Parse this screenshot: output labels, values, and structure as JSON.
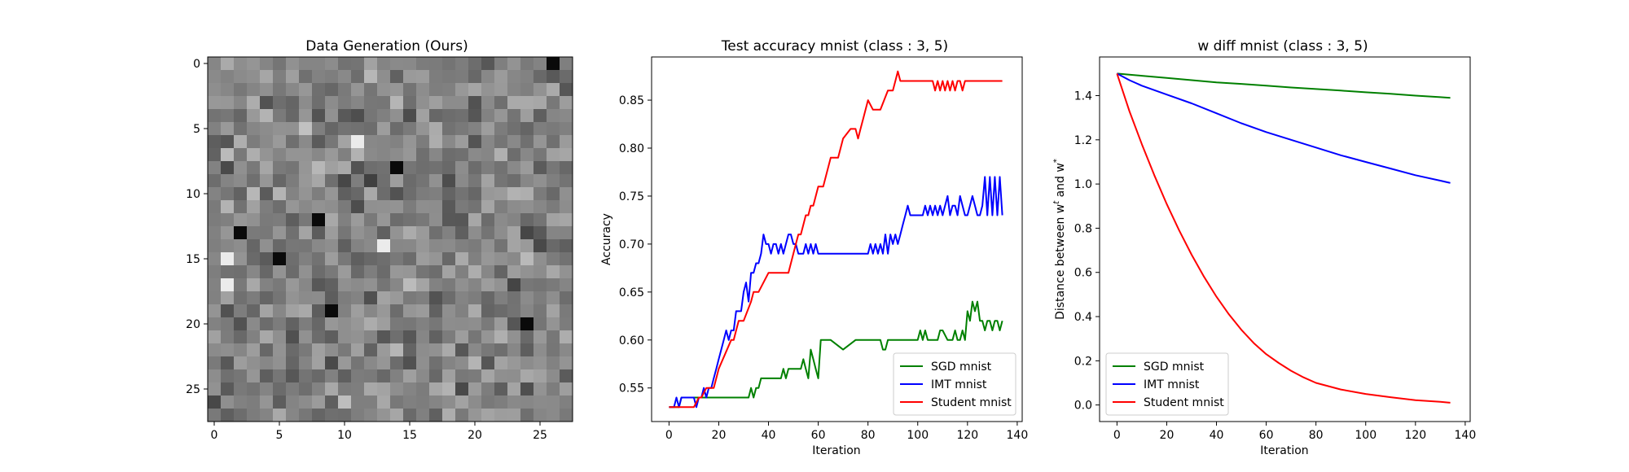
{
  "chart_data": [
    {
      "type": "heatmap",
      "title": "Data Generation (Ours)",
      "xlabel": "",
      "ylabel": "",
      "rows": 28,
      "cols": 28,
      "colormap": "gray",
      "xticks": [
        0,
        5,
        10,
        15,
        20,
        25
      ],
      "yticks": [
        0,
        5,
        10,
        15,
        20,
        25
      ],
      "notable_cells": {
        "white": [
          [
            17,
            1
          ],
          [
            14,
            13
          ],
          [
            6,
            11
          ],
          [
            15,
            1
          ]
        ],
        "black": [
          [
            19,
            9
          ],
          [
            20,
            24
          ],
          [
            0,
            26
          ],
          [
            12,
            8
          ],
          [
            13,
            2
          ],
          [
            15,
            5
          ],
          [
            8,
            14
          ]
        ]
      }
    },
    {
      "type": "line",
      "title": "Test accuracy mnist (class : 3, 5)",
      "xlabel": "Iteration",
      "ylabel": "Accuracy",
      "xlim": [
        -7,
        142
      ],
      "ylim": [
        0.515,
        0.895
      ],
      "xticks": [
        0,
        20,
        40,
        60,
        80,
        100,
        120,
        140
      ],
      "yticks": [
        0.55,
        0.6,
        0.65,
        0.7,
        0.75,
        0.8,
        0.85
      ],
      "legend": "lower right",
      "series": [
        {
          "name": "SGD mnist",
          "color": "#008000",
          "x": [
            0,
            2,
            3,
            4,
            5,
            10,
            15,
            20,
            25,
            30,
            32,
            33,
            34,
            35,
            36,
            37,
            45,
            46,
            47,
            48,
            49,
            50,
            53,
            54,
            55,
            56,
            57,
            58,
            59,
            60,
            61,
            62,
            63,
            64,
            65,
            70,
            75,
            76,
            77,
            78,
            80,
            85,
            86,
            87,
            88,
            90,
            95,
            100,
            101,
            102,
            103,
            104,
            106,
            107,
            108,
            109,
            110,
            112,
            113,
            114,
            115,
            116,
            117,
            118,
            119,
            120,
            121,
            122,
            123,
            124,
            125,
            126,
            127,
            128,
            129,
            130,
            131,
            132,
            133,
            134
          ],
          "y": [
            0.53,
            0.53,
            0.53,
            0.53,
            0.54,
            0.54,
            0.54,
            0.54,
            0.54,
            0.54,
            0.54,
            0.55,
            0.54,
            0.55,
            0.55,
            0.56,
            0.56,
            0.57,
            0.56,
            0.57,
            0.57,
            0.57,
            0.57,
            0.58,
            0.57,
            0.56,
            0.59,
            0.58,
            0.57,
            0.56,
            0.6,
            0.6,
            0.6,
            0.6,
            0.6,
            0.59,
            0.6,
            0.6,
            0.6,
            0.6,
            0.6,
            0.6,
            0.59,
            0.59,
            0.6,
            0.6,
            0.6,
            0.6,
            0.61,
            0.6,
            0.61,
            0.6,
            0.6,
            0.6,
            0.6,
            0.61,
            0.61,
            0.6,
            0.6,
            0.6,
            0.61,
            0.6,
            0.6,
            0.61,
            0.6,
            0.63,
            0.62,
            0.64,
            0.63,
            0.64,
            0.62,
            0.62,
            0.61,
            0.62,
            0.62,
            0.61,
            0.62,
            0.62,
            0.61,
            0.62
          ]
        },
        {
          "name": "IMT mnist",
          "color": "#0000ff",
          "x": [
            0,
            1,
            2,
            3,
            4,
            5,
            10,
            11,
            12,
            13,
            14,
            15,
            16,
            17,
            18,
            19,
            20,
            21,
            22,
            23,
            24,
            25,
            26,
            27,
            28,
            29,
            30,
            31,
            32,
            33,
            34,
            35,
            36,
            37,
            38,
            39,
            40,
            41,
            42,
            43,
            44,
            45,
            46,
            47,
            48,
            49,
            50,
            51,
            52,
            53,
            54,
            55,
            56,
            57,
            58,
            59,
            60,
            61,
            62,
            63,
            64,
            65,
            70,
            75,
            80,
            81,
            82,
            83,
            84,
            85,
            86,
            87,
            88,
            89,
            90,
            91,
            92,
            93,
            94,
            95,
            96,
            97,
            98,
            99,
            100,
            101,
            102,
            103,
            104,
            105,
            106,
            107,
            108,
            109,
            110,
            111,
            112,
            113,
            114,
            115,
            116,
            117,
            118,
            119,
            120,
            121,
            122,
            123,
            124,
            125,
            126,
            127,
            128,
            129,
            130,
            131,
            132,
            133,
            134
          ],
          "y": [
            0.53,
            0.53,
            0.53,
            0.54,
            0.53,
            0.54,
            0.54,
            0.53,
            0.54,
            0.54,
            0.55,
            0.54,
            0.55,
            0.55,
            0.56,
            0.57,
            0.58,
            0.59,
            0.6,
            0.61,
            0.6,
            0.61,
            0.61,
            0.63,
            0.63,
            0.63,
            0.65,
            0.66,
            0.64,
            0.67,
            0.67,
            0.68,
            0.68,
            0.69,
            0.71,
            0.7,
            0.7,
            0.69,
            0.7,
            0.7,
            0.69,
            0.7,
            0.69,
            0.7,
            0.71,
            0.71,
            0.7,
            0.7,
            0.69,
            0.69,
            0.69,
            0.7,
            0.69,
            0.7,
            0.69,
            0.7,
            0.69,
            0.69,
            0.69,
            0.69,
            0.69,
            0.69,
            0.69,
            0.69,
            0.69,
            0.7,
            0.69,
            0.7,
            0.69,
            0.7,
            0.69,
            0.71,
            0.69,
            0.71,
            0.7,
            0.71,
            0.7,
            0.71,
            0.72,
            0.73,
            0.74,
            0.73,
            0.73,
            0.73,
            0.73,
            0.73,
            0.73,
            0.74,
            0.73,
            0.74,
            0.73,
            0.74,
            0.73,
            0.74,
            0.73,
            0.74,
            0.75,
            0.73,
            0.74,
            0.74,
            0.73,
            0.75,
            0.74,
            0.73,
            0.73,
            0.74,
            0.75,
            0.74,
            0.73,
            0.73,
            0.74,
            0.77,
            0.73,
            0.77,
            0.73,
            0.77,
            0.73,
            0.77,
            0.73
          ]
        },
        {
          "name": "Student mnist",
          "color": "#ff0000",
          "x": [
            0,
            5,
            10,
            12,
            13,
            15,
            18,
            19,
            20,
            25,
            26,
            27,
            28,
            30,
            33,
            34,
            36,
            40,
            45,
            48,
            51,
            52,
            53,
            54,
            55,
            56,
            57,
            58,
            60,
            62,
            65,
            67,
            68,
            70,
            73,
            75,
            76,
            77,
            78,
            80,
            82,
            83,
            84,
            85,
            88,
            89,
            90,
            91,
            92,
            93,
            95,
            100,
            105,
            106,
            107,
            108,
            109,
            110,
            111,
            112,
            113,
            114,
            115,
            116,
            117,
            118,
            119,
            120,
            125,
            130,
            134
          ],
          "y": [
            0.53,
            0.53,
            0.53,
            0.54,
            0.54,
            0.55,
            0.55,
            0.56,
            0.57,
            0.6,
            0.6,
            0.61,
            0.62,
            0.62,
            0.64,
            0.65,
            0.65,
            0.67,
            0.67,
            0.67,
            0.7,
            0.71,
            0.71,
            0.72,
            0.73,
            0.73,
            0.74,
            0.74,
            0.76,
            0.76,
            0.79,
            0.79,
            0.79,
            0.81,
            0.82,
            0.82,
            0.81,
            0.82,
            0.83,
            0.85,
            0.84,
            0.84,
            0.84,
            0.84,
            0.86,
            0.86,
            0.86,
            0.87,
            0.88,
            0.87,
            0.87,
            0.87,
            0.87,
            0.87,
            0.86,
            0.87,
            0.86,
            0.87,
            0.86,
            0.87,
            0.86,
            0.87,
            0.86,
            0.87,
            0.87,
            0.86,
            0.87,
            0.87,
            0.87,
            0.87,
            0.87
          ]
        }
      ]
    },
    {
      "type": "line",
      "title": "w diff mnist (class : 3, 5)",
      "xlabel": "Iteration",
      "ylabel": "Distance between w",
      "ylabel_sup_1": "t",
      "ylabel_mid": " and w",
      "ylabel_sup_2": "*",
      "xlim": [
        -7,
        142
      ],
      "ylim": [
        -0.075,
        1.575
      ],
      "xticks": [
        0,
        20,
        40,
        60,
        80,
        100,
        120,
        140
      ],
      "yticks": [
        0.0,
        0.2,
        0.4,
        0.6,
        0.8,
        1.0,
        1.2,
        1.4
      ],
      "legend": "lower left",
      "series": [
        {
          "name": "SGD mnist",
          "color": "#008000",
          "x": [
            0,
            5,
            10,
            20,
            30,
            40,
            50,
            60,
            70,
            80,
            90,
            100,
            110,
            120,
            130,
            134
          ],
          "y": [
            1.5,
            1.495,
            1.49,
            1.48,
            1.47,
            1.46,
            1.453,
            1.445,
            1.437,
            1.43,
            1.423,
            1.415,
            1.408,
            1.4,
            1.393,
            1.39
          ]
        },
        {
          "name": "IMT mnist",
          "color": "#0000ff",
          "x": [
            0,
            5,
            10,
            20,
            30,
            40,
            50,
            60,
            70,
            80,
            90,
            100,
            110,
            120,
            130,
            134
          ],
          "y": [
            1.5,
            1.47,
            1.445,
            1.405,
            1.365,
            1.32,
            1.275,
            1.235,
            1.2,
            1.165,
            1.13,
            1.1,
            1.07,
            1.04,
            1.015,
            1.005
          ]
        },
        {
          "name": "Student mnist",
          "color": "#ff0000",
          "x": [
            0,
            5,
            10,
            15,
            20,
            25,
            30,
            35,
            40,
            45,
            50,
            55,
            60,
            65,
            70,
            75,
            80,
            90,
            100,
            110,
            120,
            130,
            134
          ],
          "y": [
            1.5,
            1.33,
            1.18,
            1.04,
            0.91,
            0.79,
            0.68,
            0.58,
            0.49,
            0.41,
            0.34,
            0.28,
            0.23,
            0.19,
            0.155,
            0.125,
            0.1,
            0.07,
            0.05,
            0.035,
            0.022,
            0.014,
            0.01
          ]
        }
      ]
    }
  ]
}
